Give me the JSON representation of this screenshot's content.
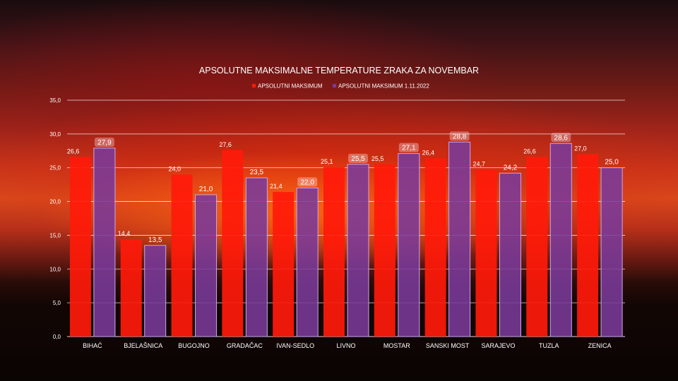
{
  "chart_data": {
    "type": "bar",
    "title": "APSOLUTNE MAKSIMALNE TEMPERATURE ZRAKA ZA NOVEMBAR",
    "xlabel": "",
    "ylabel": "",
    "ylim": [
      0,
      35
    ],
    "yticks": [
      "0,0",
      "5,0",
      "10,0",
      "15,0",
      "20,0",
      "25,0",
      "30,0",
      "35,0"
    ],
    "ytick_values": [
      0,
      5,
      10,
      15,
      20,
      25,
      30,
      35
    ],
    "grid": true,
    "legend_position": "top",
    "categories": [
      "BIHAĆ",
      "BJELAŠNICA",
      "BUGOJNO",
      "GRADAČAC",
      "IVAN-SEDLO",
      "LIVNO",
      "MOSTAR",
      "SANSKI MOST",
      "SARAJEVO",
      "TUZLA",
      "ZENICA"
    ],
    "series": [
      {
        "name": "APSOLUTNI MAKSIMUM",
        "color": "#ff1a0a",
        "values": [
          26.6,
          14.4,
          24.0,
          27.6,
          21.4,
          25.1,
          25.5,
          26.4,
          24.7,
          26.6,
          27.0
        ],
        "labels": [
          "26,6",
          "14,4",
          "24,0",
          "27,6",
          "21,4",
          "25,1",
          "25,5",
          "26,4",
          "24,7",
          "26,6",
          "27,0"
        ]
      },
      {
        "name": "APSOLUTNI MAKSIMUM 1.11.2022",
        "color": "#7a3a9a",
        "values": [
          27.9,
          13.5,
          21.0,
          23.5,
          22.0,
          25.5,
          27.1,
          28.8,
          24.2,
          28.6,
          25.0
        ],
        "labels": [
          "27,9",
          "13,5",
          "21,0",
          "23,5",
          "22,0",
          "25,5",
          "27,1",
          "28,8",
          "24,2",
          "28,6",
          "25,0"
        ],
        "highlighted_labels": [
          true,
          false,
          false,
          false,
          true,
          true,
          true,
          true,
          false,
          true,
          false
        ]
      }
    ]
  }
}
